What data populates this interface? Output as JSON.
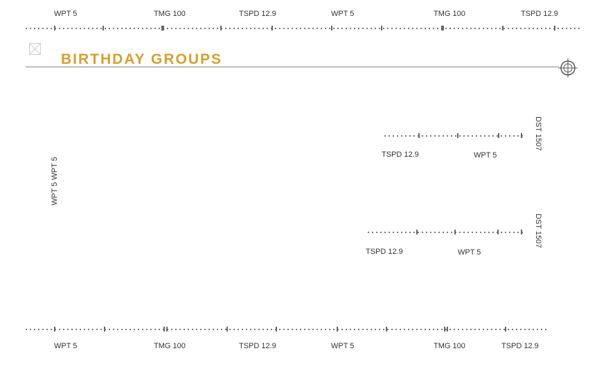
{
  "top_labels": [
    "WPT 5",
    "TMG 100",
    "TSPD 12.9",
    "WPT 5",
    "TMG 100",
    "TSPD 12.9"
  ],
  "bottom_labels": [
    "WPT 5",
    "TMG 100",
    "TSPD 12.9",
    "WPT 5",
    "TMG 100",
    "TSPD 12.9"
  ],
  "header": {
    "title": "BIRTHDAY GROUPS",
    "accent": "#d4a030"
  },
  "side_label": "WPT 5   WPT 5",
  "panel1": {
    "left": "TSPD 12.9",
    "right": "WPT 5",
    "vertical": "DST 1507"
  },
  "panel2": {
    "left": "TSPD 12.9",
    "right": "WPT 5",
    "vertical": "DST 1507"
  },
  "icons": {
    "close": "broken-image-x-icon",
    "target": "crosshair-icon"
  }
}
